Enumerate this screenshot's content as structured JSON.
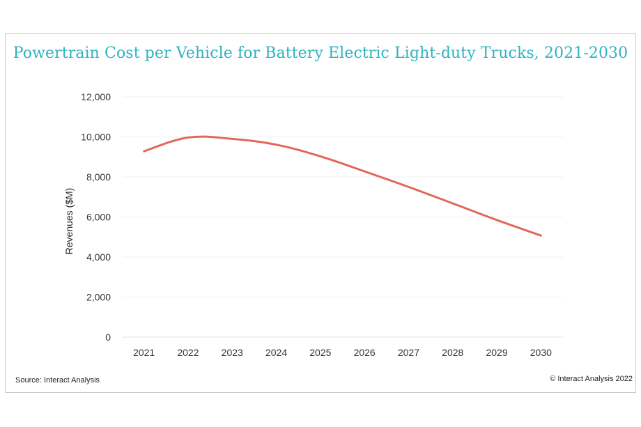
{
  "chart_data": {
    "type": "line",
    "title": "Powertrain Cost per Vehicle for Battery Electric Light-duty Trucks, 2021-2030",
    "xlabel": "",
    "ylabel": "Revenues ($M)",
    "categories": [
      "2021",
      "2022",
      "2023",
      "2024",
      "2025",
      "2026",
      "2027",
      "2028",
      "2029",
      "2030"
    ],
    "series": [
      {
        "values": [
          9280,
          9970,
          9900,
          9610,
          9030,
          8280,
          7500,
          6680,
          5850,
          5070
        ],
        "color": "#e2675a"
      }
    ],
    "ylim": [
      0,
      12000
    ],
    "yticks": [
      "0",
      "2,000",
      "4,000",
      "6,000",
      "8,000",
      "10,000",
      "12,000"
    ],
    "ytick_values": [
      0,
      2000,
      4000,
      6000,
      8000,
      10000,
      12000
    ],
    "grid": true,
    "legend": "none"
  },
  "footer": {
    "source": "Source: Interact Analysis",
    "copyright": "© Interact Analysis 2022"
  },
  "colors": {
    "title": "#2fb3c0",
    "line": "#e2675a",
    "grid": "#f0f0f0"
  }
}
